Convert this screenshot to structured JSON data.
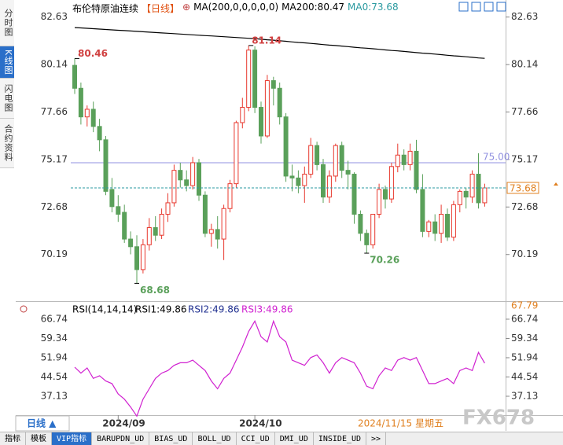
{
  "sidebar": [
    "分时图",
    "K线图",
    "闪电图",
    "合约资料"
  ],
  "header": {
    "instrument": "布伦特原油连续",
    "period": "【日线】",
    "ma_params": "MA(200,0,0,0,0,0)",
    "ma0": "MA0:73.68"
  },
  "footer": {
    "period": "日线 ▲",
    "cursor_date": "2024/11/15 星期五",
    "watermark": "FX678"
  },
  "tabs": [
    "指标",
    "模板",
    "VIP指标",
    "BARUPDN_UD",
    "BIAS_UD",
    "BOLL_UD",
    "CCI_UD",
    "DMI_UD",
    "INSIDE_UD",
    ">>"
  ],
  "chart_data": [
    {
      "type": "candlestick",
      "categories": [
        null,
        null,
        null,
        null,
        null,
        null,
        null,
        "2024/09",
        null,
        null,
        null,
        null,
        null,
        null,
        null,
        null,
        null,
        null,
        null,
        null,
        null,
        null,
        null,
        null,
        null,
        null,
        null,
        null,
        null,
        "2024/10",
        null,
        null,
        null,
        null,
        null,
        null,
        null,
        null,
        null,
        null,
        null,
        null,
        null,
        null,
        null,
        null,
        null,
        null,
        null,
        null,
        null,
        null,
        null,
        null,
        null,
        null,
        null,
        null,
        null,
        null,
        null,
        null,
        null,
        null,
        null,
        null,
        null
      ],
      "open": [
        80.1,
        78.9,
        77.4,
        77.8,
        76.9,
        76.2,
        73.6,
        72.7,
        72.4,
        71.0,
        70.6,
        69.4,
        70.7,
        71.6,
        71.2,
        72.3,
        72.9,
        74.6,
        74.1,
        73.8,
        75.0,
        73.3,
        71.3,
        71.5,
        71.0,
        72.6,
        73.9,
        77.1,
        77.9,
        80.9,
        77.9,
        76.4,
        79.3,
        78.9,
        77.4,
        74.3,
        74.2,
        73.8,
        74.4,
        75.9,
        74.9,
        73.2,
        74.3,
        75.9,
        74.6,
        74.4,
        72.3,
        71.3,
        70.7,
        72.3,
        73.6,
        73.1,
        74.8,
        75.4,
        74.9,
        75.6,
        73.6,
        71.4,
        71.9,
        71.3,
        72.3,
        71.1,
        72.8,
        73.5,
        73.2,
        74.4,
        72.9
      ],
      "high": [
        80.46,
        79.2,
        78.0,
        78.2,
        77.3,
        76.4,
        74.2,
        73.3,
        72.8,
        71.4,
        71.2,
        71.0,
        72.1,
        72.2,
        72.6,
        73.4,
        74.9,
        75.0,
        74.6,
        75.3,
        75.2,
        73.5,
        71.8,
        72.2,
        72.8,
        74.1,
        77.2,
        78.4,
        81.14,
        81.1,
        78.2,
        79.6,
        79.5,
        79.2,
        77.6,
        74.9,
        74.6,
        74.8,
        76.3,
        76.1,
        75.2,
        74.6,
        76.0,
        76.1,
        75.1,
        74.5,
        72.5,
        71.5,
        72.3,
        73.9,
        73.8,
        75.0,
        76.0,
        75.7,
        76.0,
        76.2,
        74.4,
        72.0,
        72.3,
        72.8,
        72.6,
        73.0,
        73.6,
        73.7,
        74.6,
        75.5,
        73.9
      ],
      "low": [
        78.6,
        77.0,
        76.9,
        76.6,
        75.6,
        73.3,
        72.4,
        71.9,
        70.8,
        70.2,
        68.68,
        69.2,
        70.4,
        70.9,
        71.0,
        71.9,
        72.7,
        73.7,
        73.5,
        73.6,
        73.0,
        71.1,
        70.6,
        70.5,
        69.9,
        72.4,
        73.7,
        76.8,
        77.7,
        77.6,
        76.0,
        76.3,
        78.0,
        77.0,
        74.0,
        73.5,
        73.4,
        72.9,
        74.2,
        74.6,
        72.9,
        72.9,
        74.0,
        74.2,
        73.6,
        71.8,
        70.9,
        70.26,
        70.5,
        72.1,
        72.6,
        72.9,
        74.5,
        74.6,
        74.6,
        73.4,
        71.1,
        71.1,
        70.9,
        70.8,
        70.9,
        70.9,
        72.4,
        72.6,
        72.9,
        72.6,
        72.7
      ],
      "close": [
        78.9,
        77.4,
        77.8,
        76.9,
        76.2,
        73.5,
        72.7,
        72.3,
        71.0,
        70.6,
        69.4,
        70.7,
        71.6,
        71.2,
        72.3,
        72.9,
        74.6,
        74.1,
        73.8,
        75.0,
        73.3,
        71.3,
        71.5,
        71.0,
        72.6,
        73.9,
        77.1,
        77.9,
        80.9,
        77.9,
        76.4,
        79.3,
        78.9,
        77.4,
        74.3,
        74.2,
        73.8,
        74.4,
        75.9,
        74.9,
        73.2,
        74.3,
        75.9,
        74.6,
        74.4,
        72.3,
        71.3,
        70.7,
        72.3,
        73.6,
        73.1,
        74.8,
        75.4,
        74.9,
        75.6,
        73.6,
        71.4,
        71.9,
        71.3,
        72.3,
        71.1,
        72.8,
        73.5,
        73.2,
        74.4,
        72.9,
        73.68
      ],
      "up_color": "#e8382e",
      "down_color": "#5aa05a",
      "lines": [
        {
          "name": "MA200:80.47",
          "color": "#000000",
          "values": [
            82.08,
            82.06,
            82.04,
            82.02,
            82.0,
            81.98,
            81.96,
            81.94,
            81.92,
            81.9,
            81.88,
            81.86,
            81.84,
            81.82,
            81.8,
            81.78,
            81.76,
            81.74,
            81.72,
            81.7,
            81.68,
            81.66,
            81.64,
            81.62,
            81.6,
            81.58,
            81.56,
            81.54,
            81.52,
            81.5,
            81.47,
            81.44,
            81.42,
            81.39,
            81.36,
            81.33,
            81.3,
            81.28,
            81.25,
            81.22,
            81.19,
            81.16,
            81.14,
            81.11,
            81.08,
            81.05,
            81.02,
            81.0,
            80.97,
            80.94,
            80.91,
            80.88,
            80.86,
            80.83,
            80.8,
            80.77,
            80.74,
            80.72,
            80.69,
            80.66,
            80.63,
            80.6,
            80.58,
            80.55,
            80.52,
            80.49,
            80.47
          ]
        }
      ],
      "hline": {
        "value": 75,
        "label": "75.00",
        "color": "#9090e0"
      },
      "last_color": "#2a9aa0",
      "ylim": [
        67.79,
        83.1
      ],
      "yticks": [
        70.19,
        72.68,
        75.17,
        77.66,
        80.14,
        82.63
      ]
    },
    {
      "type": "line",
      "legend": [
        "RSI(14,14,14)",
        "RSI1:49.86",
        "RSI2:49.86"
      ],
      "series": [
        {
          "name": "RSI3:49.86",
          "color": "#d020d0",
          "values": [
            48.3,
            46,
            48,
            44,
            45,
            43,
            42,
            38,
            36,
            33,
            29.5,
            36,
            40,
            44,
            46,
            47,
            49,
            50,
            50,
            51,
            49,
            47,
            43,
            40,
            44,
            46,
            51,
            56,
            62,
            66,
            60,
            58,
            66,
            60,
            58,
            51,
            50,
            49,
            52,
            53,
            50,
            46,
            50,
            52,
            51,
            50,
            46,
            41,
            40,
            45,
            48,
            47,
            51,
            52,
            51,
            52,
            47,
            42,
            42,
            43,
            44,
            42,
            47,
            48,
            47,
            54,
            49.86
          ]
        }
      ],
      "ylim": [
        30,
        69
      ],
      "yticks": [
        66.74,
        59.34,
        51.94,
        44.54,
        37.13
      ]
    }
  ]
}
